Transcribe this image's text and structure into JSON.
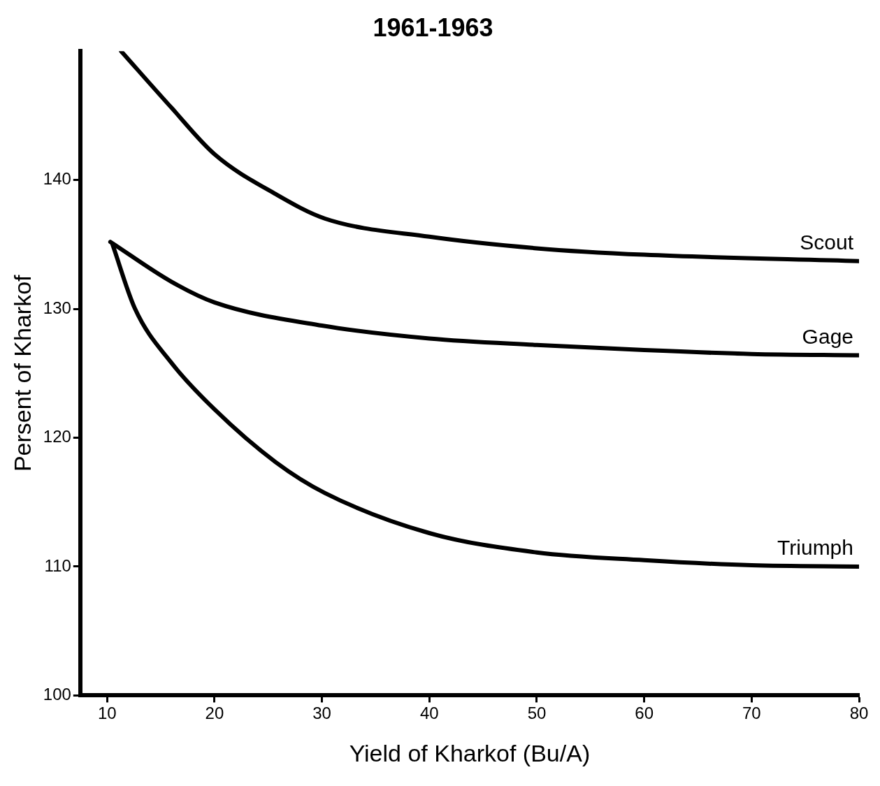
{
  "chart_data": {
    "type": "line",
    "title": "1961-1963",
    "xlabel": "Yield of Kharkof (Bu/A)",
    "ylabel": "Persent of Kharkof",
    "xlim": [
      7.5,
      80
    ],
    "xticks": [
      10,
      20,
      30,
      40,
      50,
      60,
      70,
      80
    ],
    "ylim": [
      100,
      150
    ],
    "yticks": [
      100,
      110,
      120,
      130,
      140
    ],
    "grid": false,
    "legend": false,
    "marker": "none",
    "line_style": "solid",
    "series": [
      {
        "name": "Scout",
        "color": "#000000",
        "x": [
          11.3,
          16,
          20,
          25.7,
          30.3,
          40,
          50,
          60,
          80
        ],
        "values": [
          150,
          145.6,
          142,
          138.9,
          137,
          135.6,
          134.7,
          134.2,
          133.7
        ]
      },
      {
        "name": "Gage",
        "color": "#000000",
        "x": [
          10.3,
          16,
          20,
          30,
          40,
          50,
          60,
          70,
          80
        ],
        "values": [
          135.2,
          132.1,
          130.5,
          128.7,
          127.7,
          127.2,
          126.8,
          126.5,
          126.4
        ]
      },
      {
        "name": "Triumph",
        "color": "#000000",
        "x": [
          10.5,
          12.6,
          15.9,
          20,
          25.7,
          30.3,
          40,
          50,
          60,
          70,
          80
        ],
        "values": [
          135,
          130,
          125.9,
          122.2,
          118.1,
          115.7,
          112.6,
          111.1,
          110.5,
          110.1,
          110
        ]
      }
    ]
  }
}
